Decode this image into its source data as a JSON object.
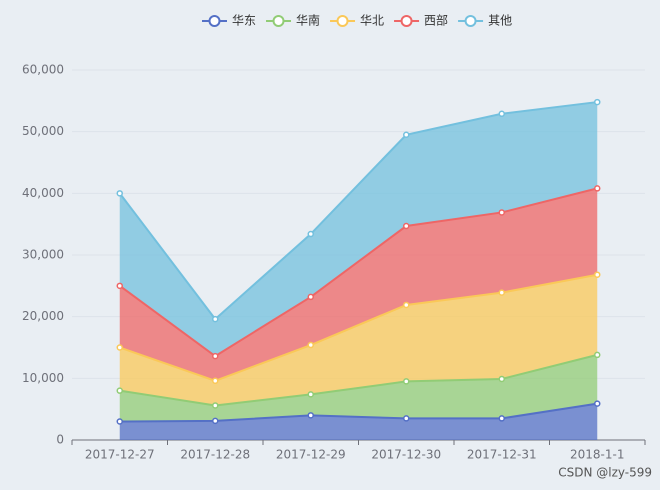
{
  "chart_data": {
    "type": "stacked-area",
    "categories": [
      "2017-12-27",
      "2017-12-28",
      "2017-12-29",
      "2017-12-30",
      "2017-12-31",
      "2018-1-1"
    ],
    "series": [
      {
        "name": "华东",
        "color": "#5470c6",
        "values": [
          3000,
          3100,
          4000,
          3500,
          3500,
          5900
        ]
      },
      {
        "name": "华南",
        "color": "#91cc75",
        "values": [
          5000,
          2500,
          3400,
          6000,
          6400,
          7900
        ]
      },
      {
        "name": "华北",
        "color": "#fac858",
        "values": [
          7000,
          4000,
          8000,
          12400,
          14000,
          13000
        ]
      },
      {
        "name": "西部",
        "color": "#ee6666",
        "values": [
          10000,
          4000,
          7800,
          12800,
          13000,
          14000
        ]
      },
      {
        "name": "其他",
        "color": "#73c0de",
        "values": [
          15000,
          6000,
          10200,
          14800,
          16000,
          14000
        ]
      }
    ],
    "ylim": [
      0,
      60000
    ],
    "yticks": [
      0,
      {
        "value": 10000,
        "label": "10,000"
      },
      {
        "value": 20000,
        "label": "20,000"
      },
      {
        "value": 30000,
        "label": "30,000"
      },
      {
        "value": 40000,
        "label": "40,000"
      },
      {
        "value": 50000,
        "label": "50,000"
      },
      {
        "value": 60000,
        "label": "60,000"
      }
    ],
    "grid": true,
    "legend": "top",
    "watermark": "CSDN @lzy-599"
  }
}
